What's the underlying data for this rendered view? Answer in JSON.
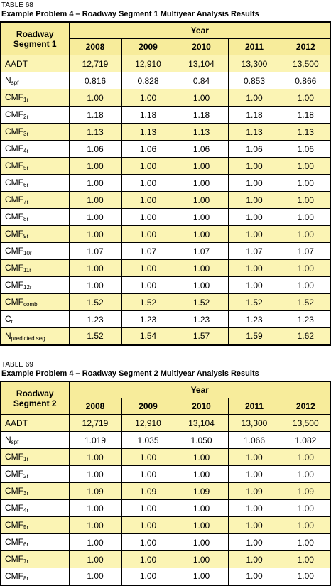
{
  "tables": [
    {
      "number": "TABLE 68",
      "title": "Example Problem 4 – Roadway Segment 1 Multiyear Analysis Results",
      "corner": "Roadway Segment 1",
      "group": "Year",
      "years": [
        "2008",
        "2009",
        "2010",
        "2011",
        "2012"
      ],
      "rows": [
        {
          "label": {
            "base": "AADT"
          },
          "cells": [
            "12,719",
            "12,910",
            "13,104",
            "13,300",
            "13,500"
          ]
        },
        {
          "label": {
            "base": "N",
            "sub": "spf"
          },
          "cells": [
            "0.816",
            "0.828",
            "0.84",
            "0.853",
            "0.866"
          ]
        },
        {
          "label": {
            "base": "CMF",
            "sub": "1r"
          },
          "cells": [
            "1.00",
            "1.00",
            "1.00",
            "1.00",
            "1.00"
          ]
        },
        {
          "label": {
            "base": "CMF",
            "sub": "2r"
          },
          "cells": [
            "1.18",
            "1.18",
            "1.18",
            "1.18",
            "1.18"
          ]
        },
        {
          "label": {
            "base": "CMF",
            "sub": "3r"
          },
          "cells": [
            "1.13",
            "1.13",
            "1.13",
            "1.13",
            "1.13"
          ]
        },
        {
          "label": {
            "base": "CMF",
            "sub": "4r"
          },
          "cells": [
            "1.06",
            "1.06",
            "1.06",
            "1.06",
            "1.06"
          ]
        },
        {
          "label": {
            "base": "CMF",
            "sub": "5r"
          },
          "cells": [
            "1.00",
            "1.00",
            "1.00",
            "1.00",
            "1.00"
          ]
        },
        {
          "label": {
            "base": "CMF",
            "sub": "6r"
          },
          "cells": [
            "1.00",
            "1.00",
            "1.00",
            "1.00",
            "1.00"
          ]
        },
        {
          "label": {
            "base": "CMF",
            "sub": "7r"
          },
          "cells": [
            "1.00",
            "1.00",
            "1.00",
            "1.00",
            "1.00"
          ]
        },
        {
          "label": {
            "base": "CMF",
            "sub": "8r"
          },
          "cells": [
            "1.00",
            "1.00",
            "1.00",
            "1.00",
            "1.00"
          ]
        },
        {
          "label": {
            "base": "CMF",
            "sub": "9r"
          },
          "cells": [
            "1.00",
            "1.00",
            "1.00",
            "1.00",
            "1.00"
          ]
        },
        {
          "label": {
            "base": "CMF",
            "sub": "10r"
          },
          "cells": [
            "1.07",
            "1.07",
            "1.07",
            "1.07",
            "1.07"
          ]
        },
        {
          "label": {
            "base": "CMF",
            "sub": "11r"
          },
          "cells": [
            "1.00",
            "1.00",
            "1.00",
            "1.00",
            "1.00"
          ]
        },
        {
          "label": {
            "base": "CMF",
            "sub": "12r"
          },
          "cells": [
            "1.00",
            "1.00",
            "1.00",
            "1.00",
            "1.00"
          ]
        },
        {
          "label": {
            "base": "CMF",
            "sub": "comb"
          },
          "cells": [
            "1.52",
            "1.52",
            "1.52",
            "1.52",
            "1.52"
          ]
        },
        {
          "label": {
            "base": "C",
            "sub": "r"
          },
          "cells": [
            "1.23",
            "1.23",
            "1.23",
            "1.23",
            "1.23"
          ]
        },
        {
          "label": {
            "base": "N",
            "sub": "predicted seg"
          },
          "cells": [
            "1.52",
            "1.54",
            "1.57",
            "1.59",
            "1.62"
          ]
        }
      ]
    },
    {
      "number": "TABLE 69",
      "title": "Example Problem 4 – Roadway Segment 2 Multiyear Analysis Results",
      "corner": "Roadway Segment 2",
      "group": "Year",
      "years": [
        "2008",
        "2009",
        "2010",
        "2011",
        "2012"
      ],
      "rows": [
        {
          "label": {
            "base": "AADT"
          },
          "cells": [
            "12,719",
            "12,910",
            "13,104",
            "13,300",
            "13,500"
          ]
        },
        {
          "label": {
            "base": "N",
            "sub": "spf"
          },
          "cells": [
            "1.019",
            "1.035",
            "1.050",
            "1.066",
            "1.082"
          ]
        },
        {
          "label": {
            "base": "CMF",
            "sub": "1r"
          },
          "cells": [
            "1.00",
            "1.00",
            "1.00",
            "1.00",
            "1.00"
          ]
        },
        {
          "label": {
            "base": "CMF",
            "sub": "2r"
          },
          "cells": [
            "1.00",
            "1.00",
            "1.00",
            "1.00",
            "1.00"
          ]
        },
        {
          "label": {
            "base": "CMF",
            "sub": "3r"
          },
          "cells": [
            "1.09",
            "1.09",
            "1.09",
            "1.09",
            "1.09"
          ]
        },
        {
          "label": {
            "base": "CMF",
            "sub": "4r"
          },
          "cells": [
            "1.00",
            "1.00",
            "1.00",
            "1.00",
            "1.00"
          ]
        },
        {
          "label": {
            "base": "CMF",
            "sub": "5r"
          },
          "cells": [
            "1.00",
            "1.00",
            "1.00",
            "1.00",
            "1.00"
          ]
        },
        {
          "label": {
            "base": "CMF",
            "sub": "6r"
          },
          "cells": [
            "1.00",
            "1.00",
            "1.00",
            "1.00",
            "1.00"
          ]
        },
        {
          "label": {
            "base": "CMF",
            "sub": "7r"
          },
          "cells": [
            "1.00",
            "1.00",
            "1.00",
            "1.00",
            "1.00"
          ]
        },
        {
          "label": {
            "base": "CMF",
            "sub": "8r"
          },
          "cells": [
            "1.00",
            "1.00",
            "1.00",
            "1.00",
            "1.00"
          ]
        }
      ]
    }
  ]
}
